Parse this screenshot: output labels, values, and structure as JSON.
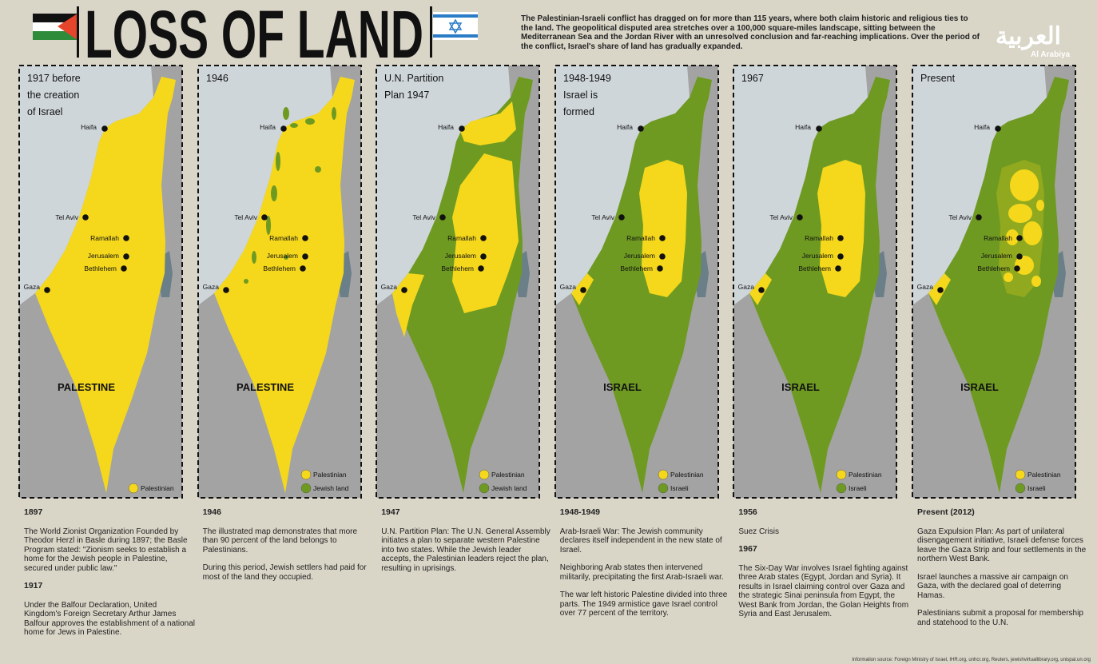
{
  "header": {
    "title": "LOSS OF LAND",
    "intro": "The Palestinian-Israeli conflict has dragged on for more than 115 years, where both claim historic and religious ties to the land. The geopolitical disputed area stretches over a 100,000 square-miles landscape, sitting between the Mediterranean Sea and the Jordan River with an unresolved conclusion and far-reaching implications. Over the period of the conflict, Israel's share of land has gradually expanded.",
    "logo_arabic": "العربية",
    "logo_latin": "Al Arabiya"
  },
  "cities": [
    "Haifa",
    "Tel Aviv",
    "Ramallah",
    "Jerusalem",
    "Bethlehem",
    "Gaza"
  ],
  "panels": [
    {
      "title": [
        "1917 before",
        "the creation",
        "of Israel"
      ],
      "region": "PALESTINE",
      "legend": [
        "Palestinian"
      ],
      "sections": [
        {
          "heading": "1897",
          "paragraphs": [
            "The World Zionist Organization Founded by Theodor Herzl in Basle during 1897; the Basle Program stated: \"Zionism seeks to establish a home for the Jewish people in Palestine, secured under public law.\""
          ]
        },
        {
          "heading": "1917",
          "paragraphs": [
            "Under the Balfour Declaration, United Kingdom's Foreign Secretary Arthur James Balfour approves the establishment of a national home for Jews in Palestine."
          ]
        }
      ]
    },
    {
      "title": [
        "1946"
      ],
      "region": "PALESTINE",
      "legend": [
        "Palestinian",
        "Jewish land"
      ],
      "sections": [
        {
          "heading": "1946",
          "paragraphs": [
            "The illustrated map demonstrates that more than 90 percent  of the land belongs to Palestinians.",
            "During this period, Jewish settlers had paid for most of the land they occupied."
          ]
        }
      ]
    },
    {
      "title": [
        "U.N. Partition",
        "Plan 1947"
      ],
      "region": null,
      "legend": [
        "Palestinian",
        "Jewish land"
      ],
      "sections": [
        {
          "heading": "1947",
          "paragraphs": [
            "U.N. Partition Plan: The U.N. General Assembly initiates a plan to separate western Palestine into two states. While the Jewish leader accepts, the Palestinian leaders reject the plan, resulting in uprisings."
          ]
        }
      ]
    },
    {
      "title": [
        "1948-1949",
        "Israel is",
        "formed"
      ],
      "region": "ISRAEL",
      "legend": [
        "Palestinian",
        "Israeli"
      ],
      "sections": [
        {
          "heading": "1948-1949",
          "paragraphs": [
            "Arab-Israeli War: The Jewish community declares itself independent in the new state of Israel.",
            "Neighboring Arab states then intervened militarily, precipitating the first Arab-Israeli war.",
            "The war left historic Palestine divided into three parts. The 1949 armistice gave Israel control over 77 percent of the territory."
          ]
        }
      ]
    },
    {
      "title": [
        "1967"
      ],
      "region": "ISRAEL",
      "legend": [
        "Palestinian",
        "Israeli"
      ],
      "sections": [
        {
          "heading": "1956",
          "paragraphs": [
            "Suez Crisis"
          ]
        },
        {
          "heading": "1967",
          "paragraphs": [
            "The Six-Day War involves Israel fighting against three Arab states (Egypt, Jordan and Syria). It results in Israel claiming control over Gaza and the strategic Sinai peninsula from Egypt, the West Bank from Jordan, the Golan Heights from Syria and East Jerusalem."
          ]
        }
      ]
    },
    {
      "title": [
        "Present"
      ],
      "region": "ISRAEL",
      "legend": [
        "Palestinian",
        "Israeli"
      ],
      "sections": [
        {
          "heading": "Present (2012)",
          "paragraphs": [
            "Gaza Expulsion Plan: As part of unilateral disengagement initiative, Israeli defense forces leave the Gaza Strip and four settlements in the northern West Bank.",
            "Israel launches a massive air campaign on Gaza, with the declared goal of deterring Hamas.",
            "Palestinians submit a proposal for membership and statehood to the U.N."
          ]
        }
      ]
    }
  ],
  "footer": "Information source: Foreign Ministry of Israel, IHR.org, unhcr.org, Reuters, jewishvirtuallibrary.org, unispal.un.org"
}
